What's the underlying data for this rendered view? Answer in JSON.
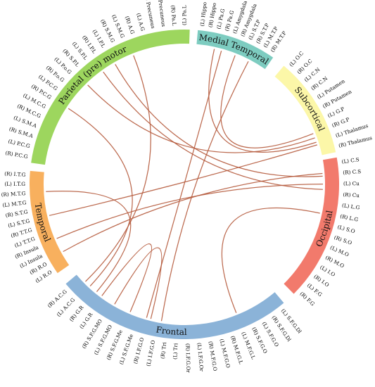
{
  "groups": [
    {
      "name": "Medial Temporal",
      "color": "#7dccc0",
      "nodes": [
        "(L) Hippo",
        "(R) Hippo",
        "(L) Pa.G",
        "(R) Pa.G",
        "(L) Amygdala",
        "(R) Amygdala",
        "(L) S.T.P",
        "(R) S.T.P",
        "(L) M.T.P",
        "(R) M.T.P"
      ]
    },
    {
      "name": "Subcortical",
      "color": "#fcf7a8",
      "nodes": [
        "(L) O.C",
        "(R) O.C",
        "(L) C.N",
        "(R) C.N",
        "(L) Putamen",
        "(R) Putamen",
        "(L) G.P",
        "(R) G.P",
        "(L) Thalamus",
        "(R) Thalamus"
      ]
    },
    {
      "name": "Occipital",
      "color": "#f27a6c",
      "nodes": [
        "(L) C.S",
        "(R) C.S",
        "(L) Cu",
        "(R) Cu",
        "(L) L.G",
        "(R) L.G",
        "(L) S.O",
        "(R) S.O",
        "(L) M.O",
        "(R) M.O",
        "(L) I.O",
        "(R) I.O",
        "(L) F.G",
        "(R) F.G"
      ]
    },
    {
      "name": "Frontal",
      "color": "#8bb3d8",
      "nodes": [
        "(L) S.F.G.Dl",
        "(R) S.F.G.Dl",
        "(L) S.F.G.O",
        "(R) S.F.G.O",
        "(L) M.F.G.L",
        "(R) M.F.G.L",
        "(L) M.F.G.O",
        "(R) M.F.G.O",
        "(L) I.F.G.Or",
        "(R) I.F.G.Or",
        "(L) Tri",
        "(R) Tri",
        "(L) I.F.G.O",
        "(R) I.F.G.O",
        "(L) S.F.G.Me",
        "(R) S.F.G.Me",
        "(L) S.F.G.MO",
        "(R) S.F.G.MO",
        "(L) G.R",
        "(R) G.R",
        "(L) A.C.G",
        "(R) A.C.G"
      ]
    },
    {
      "name": "Temporal",
      "color": "#f8b05e",
      "nodes": [
        "(L) R.O",
        "(R) R.O",
        "(L) Insula",
        "(R) Insula",
        "(L) T.T.G",
        "(R) T.T.G",
        "(L) S.T.G",
        "(R) S.T.G",
        "(L) M.T.G",
        "(R) M.T.G",
        "(L) I.T.G",
        "(R) I.T.G"
      ]
    },
    {
      "name": "Parietal (pre) motor",
      "color": "#9dd65e",
      "nodes": [
        "(R) P.C.G",
        "(L) P.C.G",
        "(R) S.M.A",
        "(L) S.M.A",
        "(R) M.C.G",
        "(L) M.C.G",
        "(R) P.C.G",
        "(L) P.C.G",
        "(R) P.o.G",
        "(L) P.o.G",
        "(R) S.P.L",
        "(L) S.P.L",
        "(R) I.P.L",
        "(L) I.P.L",
        "(R) S.M.G",
        "(L) S.M.G",
        "(R) A.G",
        "(L) A.G",
        "(R) Precuneus",
        "(L) Precuneus",
        "(R) Pa.L",
        "(L) Pa.L"
      ]
    }
  ],
  "links": [
    {
      "source": "Medial Temporal",
      "target": "Subcortical"
    },
    {
      "source": "Medial Temporal",
      "target": "Subcortical"
    },
    {
      "source": "Medial Temporal",
      "target": "Frontal"
    },
    {
      "source": "Medial Temporal",
      "target": "Frontal"
    },
    {
      "source": "Parietal (pre) motor",
      "target": "Subcortical"
    },
    {
      "source": "Parietal (pre) motor",
      "target": "Occipital"
    },
    {
      "source": "Parietal (pre) motor",
      "target": "Occipital"
    },
    {
      "source": "Parietal (pre) motor",
      "target": "Frontal"
    },
    {
      "source": "Parietal (pre) motor",
      "target": "Frontal"
    },
    {
      "source": "Temporal",
      "target": "Occipital"
    },
    {
      "source": "Temporal",
      "target": "Occipital"
    },
    {
      "source": "Temporal",
      "target": "Subcortical"
    },
    {
      "source": "Temporal",
      "target": "Frontal"
    },
    {
      "source": "Frontal",
      "target": "Frontal"
    },
    {
      "source": "Frontal",
      "target": "Frontal"
    },
    {
      "source": "Frontal",
      "target": "Occipital"
    }
  ],
  "link_color": "#b55a3c"
}
